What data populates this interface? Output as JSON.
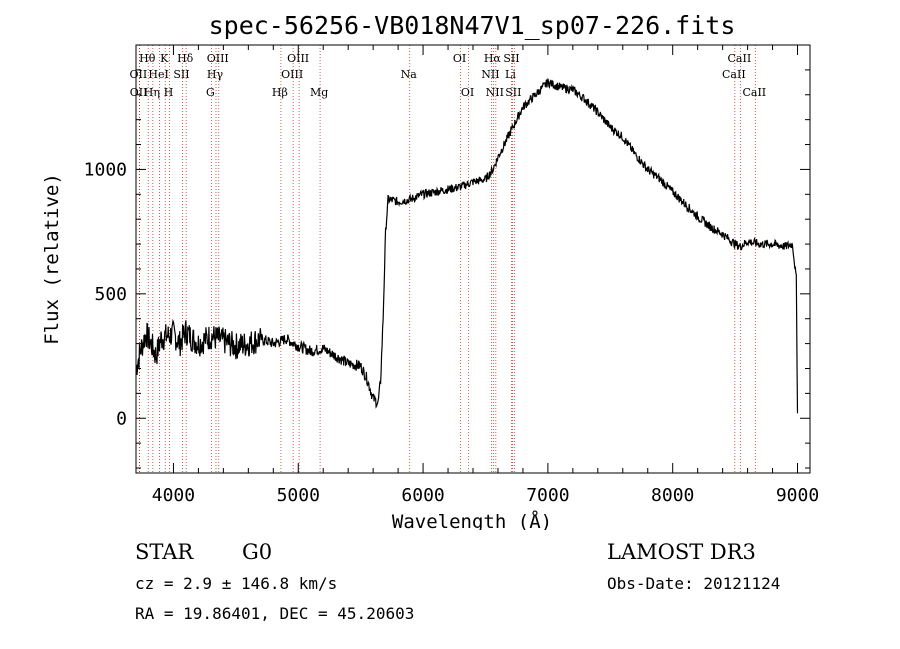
{
  "chart_data": {
    "type": "line",
    "title": "spec-56256-VB018N47V1_sp07-226.fits",
    "xlabel": "Wavelength (Å)",
    "ylabel": "Flux (relative)",
    "xlim": [
      3700,
      9100
    ],
    "ylim": [
      -220,
      1500
    ],
    "xticks": [
      4000,
      5000,
      6000,
      7000,
      8000,
      9000
    ],
    "yticks": [
      0,
      500,
      1000
    ],
    "grid": false,
    "series": [
      {
        "name": "flux",
        "x": [
          3700,
          3740,
          3780,
          3820,
          3860,
          3900,
          3950,
          4000,
          4050,
          4100,
          4150,
          4200,
          4300,
          4400,
          4500,
          4600,
          4700,
          4800,
          4860,
          4900,
          5000,
          5100,
          5200,
          5300,
          5400,
          5500,
          5550,
          5600,
          5640,
          5660,
          5680,
          5700,
          5720,
          5800,
          5900,
          6000,
          6100,
          6200,
          6300,
          6400,
          6500,
          6560,
          6600,
          6700,
          6800,
          6900,
          7000,
          7100,
          7200,
          7300,
          7400,
          7500,
          7600,
          7700,
          7800,
          7900,
          8000,
          8100,
          8200,
          8300,
          8400,
          8500,
          8540,
          8600,
          8700,
          8800,
          8900,
          8960,
          8990,
          9000
        ],
        "y": [
          200,
          280,
          340,
          300,
          250,
          320,
          330,
          340,
          300,
          350,
          320,
          300,
          330,
          310,
          290,
          300,
          320,
          300,
          310,
          320,
          290,
          270,
          280,
          250,
          220,
          210,
          160,
          80,
          60,
          150,
          400,
          750,
          880,
          870,
          880,
          900,
          910,
          920,
          930,
          950,
          960,
          1000,
          1050,
          1150,
          1250,
          1300,
          1350,
          1330,
          1320,
          1280,
          1230,
          1170,
          1130,
          1060,
          1000,
          960,
          910,
          860,
          810,
          770,
          740,
          700,
          690,
          710,
          700,
          700,
          690,
          700,
          560,
          20
        ]
      }
    ],
    "lines": [
      {
        "name": "Hθ",
        "x": 3798,
        "row": 1
      },
      {
        "name": "OII",
        "x": 3727,
        "row": 2
      },
      {
        "name": "OII",
        "x": 3729,
        "row": 3
      },
      {
        "name": "Hη",
        "x": 3835,
        "row": 3
      },
      {
        "name": "HeI",
        "x": 3889,
        "row": 2
      },
      {
        "name": "K",
        "x": 3934,
        "row": 1
      },
      {
        "name": "H",
        "x": 3969,
        "row": 3
      },
      {
        "name": "Hδ",
        "x": 4102,
        "row": 1
      },
      {
        "name": "SII",
        "x": 4072,
        "row": 2
      },
      {
        "name": "OIII",
        "x": 4363,
        "row": 1
      },
      {
        "name": "Hγ",
        "x": 4341,
        "row": 2
      },
      {
        "name": "G",
        "x": 4304,
        "row": 3
      },
      {
        "name": "Hβ",
        "x": 4861,
        "row": 3
      },
      {
        "name": "OIII",
        "x": 5007,
        "row": 1
      },
      {
        "name": "OIII",
        "x": 4959,
        "row": 2
      },
      {
        "name": "Mg",
        "x": 5175,
        "row": 3
      },
      {
        "name": "Na",
        "x": 5893,
        "row": 2
      },
      {
        "name": "OI",
        "x": 6300,
        "row": 1
      },
      {
        "name": "OI",
        "x": 6364,
        "row": 3
      },
      {
        "name": "Hα",
        "x": 6563,
        "row": 1
      },
      {
        "name": "NII",
        "x": 6548,
        "row": 2
      },
      {
        "name": "NII",
        "x": 6583,
        "row": 3
      },
      {
        "name": "SII",
        "x": 6716,
        "row": 1
      },
      {
        "name": "Li",
        "x": 6708,
        "row": 2
      },
      {
        "name": "SII",
        "x": 6731,
        "row": 3
      },
      {
        "name": "CaII",
        "x": 8542,
        "row": 1
      },
      {
        "name": "CaII",
        "x": 8498,
        "row": 2
      },
      {
        "name": "CaII",
        "x": 8662,
        "row": 3
      }
    ],
    "line_color": "#c0392b"
  },
  "info": {
    "class": "STAR",
    "subclass": "G0",
    "survey": "LAMOST DR3",
    "cz": "cz = 2.9 ± 146.8 km/s",
    "obs_date": "Obs-Date: 20121124",
    "coords": "RA =  19.86401, DEC =  45.20603"
  }
}
